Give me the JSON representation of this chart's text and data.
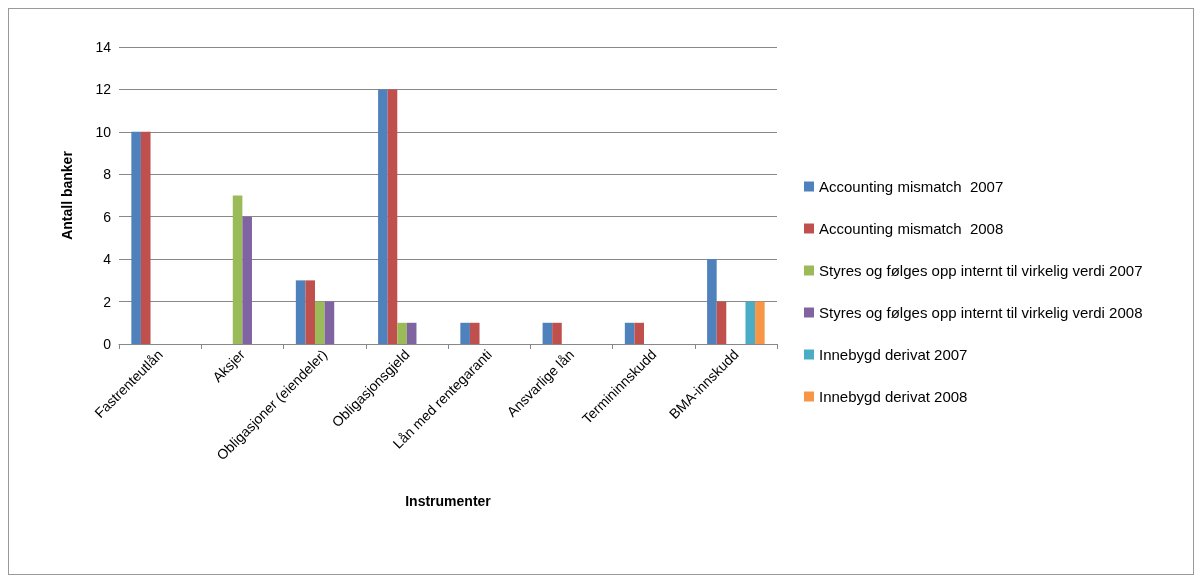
{
  "chart_data": {
    "type": "bar",
    "xlabel": "Instrumenter",
    "ylabel": "Antall banker",
    "categories": [
      "Fastrenteutlån",
      "Aksjer",
      "Obligasjoner (eiendeler)",
      "Obligasjonsgjeld",
      "Lån med rentegaranti",
      "Ansvarlige lån",
      "Termininnskudd",
      "BMA-innskudd"
    ],
    "series": [
      {
        "name": "Accounting mismatch  2007",
        "color": "#4f81bd",
        "values": [
          10,
          0,
          3,
          12,
          1,
          1,
          1,
          4
        ]
      },
      {
        "name": "Accounting mismatch  2008",
        "color": "#c0504d",
        "values": [
          10,
          0,
          3,
          12,
          1,
          1,
          1,
          2
        ]
      },
      {
        "name": "Styres og følges opp internt til virkelig verdi 2007",
        "color": "#9bbb59",
        "values": [
          0,
          7,
          2,
          1,
          0,
          0,
          0,
          0
        ]
      },
      {
        "name": "Styres og følges opp internt til virkelig verdi 2008",
        "color": "#8064a2",
        "values": [
          0,
          6,
          2,
          1,
          0,
          0,
          0,
          0
        ]
      },
      {
        "name": "Innebygd derivat 2007",
        "color": "#4bacc6",
        "values": [
          0,
          0,
          0,
          0,
          0,
          0,
          0,
          2
        ]
      },
      {
        "name": "Innebygd derivat 2008",
        "color": "#f79646",
        "values": [
          0,
          0,
          0,
          0,
          0,
          0,
          0,
          2
        ]
      }
    ],
    "ylim": [
      0,
      14
    ],
    "yticks": [
      0,
      2,
      4,
      6,
      8,
      10,
      12,
      14
    ],
    "grid": "y",
    "legend": "right"
  }
}
